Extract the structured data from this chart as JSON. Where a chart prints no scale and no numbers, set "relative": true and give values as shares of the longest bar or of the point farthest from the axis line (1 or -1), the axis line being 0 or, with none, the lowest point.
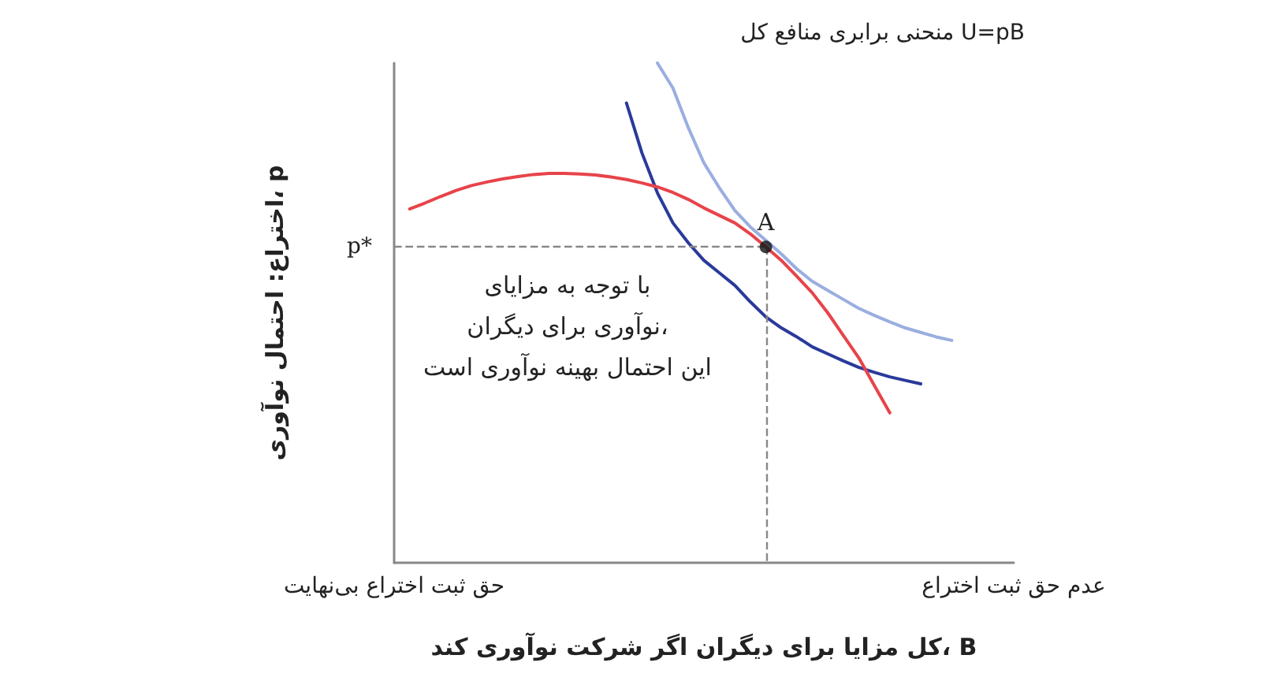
{
  "chart_data": {
    "type": "line",
    "relative": true,
    "xlabel": "کل مزایا برای دیگران اگر شرکت نوآوری کند، B",
    "ylabel": "اختراع: احتمال نوآوری، p",
    "categories": [
      "حق ثبت اختراع بی‌نهایت",
      null,
      null,
      null,
      null,
      null,
      null,
      null,
      null,
      null,
      null,
      null,
      null,
      null,
      null,
      null,
      null,
      null,
      null,
      null,
      null,
      null,
      null,
      null,
      null,
      null,
      null,
      null,
      null,
      null,
      null,
      null,
      null,
      null,
      null,
      null,
      null,
      null,
      null,
      null,
      "عدم حق ثبت اختراع"
    ],
    "marker": "none",
    "line_style": "solid",
    "grid": false,
    "series": [
      {
        "color": "#9aaee0",
        "values": [
          null,
          null,
          null,
          null,
          null,
          null,
          null,
          null,
          null,
          null,
          null,
          null,
          null,
          null,
          null,
          null,
          null,
          1,
          0.95,
          0.87,
          0.8,
          0.75,
          0.705,
          0.672,
          0.645,
          0.618,
          0.588,
          0.563,
          0.545,
          0.527,
          0.509,
          0.495,
          0.482,
          0.47,
          0.461,
          0.452,
          0.445,
          null,
          null,
          null,
          null
        ]
      },
      {
        "color": "#2a3a9a",
        "values": [
          null,
          null,
          null,
          null,
          null,
          null,
          null,
          null,
          null,
          null,
          null,
          null,
          null,
          null,
          null,
          0.92,
          0.82,
          0.74,
          0.68,
          0.64,
          0.605,
          0.58,
          0.555,
          0.522,
          0.492,
          0.47,
          0.452,
          0.432,
          0.418,
          0.404,
          0.391,
          0.381,
          0.372,
          0.365,
          0.358,
          null,
          null,
          null,
          null,
          null,
          null
        ]
      },
      {
        "color": "#e8434a",
        "values": [
          null,
          0.708,
          0.72,
          0.733,
          0.745,
          0.755,
          0.762,
          0.768,
          0.773,
          0.777,
          0.779,
          0.779,
          0.778,
          0.776,
          0.772,
          0.767,
          0.76,
          0.752,
          0.741,
          0.727,
          0.71,
          0.695,
          0.68,
          0.658,
          0.632,
          0.605,
          0.573,
          0.54,
          0.5,
          0.455,
          0.41,
          0.355,
          0.3,
          null,
          null,
          null,
          null,
          null,
          null,
          null,
          null
        ]
      },
      {
        "type": "scatter",
        "marker": "circle",
        "color": "#111111",
        "values": [
          null,
          null,
          null,
          null,
          null,
          null,
          null,
          null,
          null,
          null,
          null,
          null,
          null,
          null,
          null,
          null,
          null,
          null,
          null,
          null,
          null,
          null,
          null,
          null,
          0.632,
          null,
          null,
          null,
          null,
          null,
          null,
          null,
          null,
          null,
          null,
          null,
          null,
          null,
          null,
          null,
          null
        ]
      }
    ],
    "ref_lines": [
      {
        "axis": "y",
        "value": 0.632,
        "label": "p*",
        "color": "#888888",
        "line_style": "dashed"
      }
    ],
    "annotations": [
      "A",
      "با توجه به مزایای\nنوآوری برای دیگران،\nاین احتمال بهینه نوآوری است",
      "منحنی برابری منافع کل U=pB"
    ]
  }
}
